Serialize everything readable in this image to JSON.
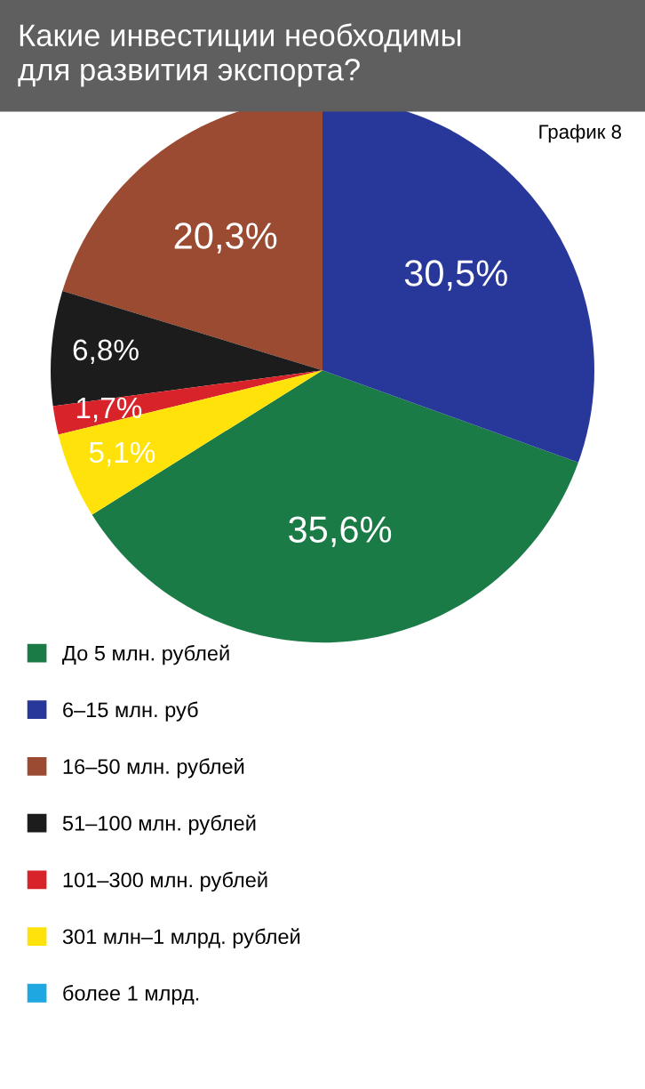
{
  "chart_data": {
    "type": "pie",
    "title": "Какие инвестиции необходимы\nдля развития экспорта?",
    "annotations": [
      "График 8"
    ],
    "categories": [
      "До 5 млн. рублей",
      "6–15 млн. руб",
      "16–50 млн. рублей",
      "51–100 млн. рублей",
      "101–300 млн. рублей",
      "301 млн–1 млрд. рублей",
      "более 1 млрд."
    ],
    "values": [
      35.6,
      30.5,
      20.3,
      6.8,
      1.7,
      5.1,
      0
    ],
    "value_labels": [
      "35,6%",
      "30,5%",
      "20,3%",
      "6,8%",
      "1,7%",
      "5,1%",
      null
    ],
    "colors": [
      "#1b7b47",
      "#27389a",
      "#9a4b32",
      "#1c1c1c",
      "#d8232a",
      "#ffe20a",
      "#1ea7e1"
    ],
    "legend": "bottom"
  }
}
